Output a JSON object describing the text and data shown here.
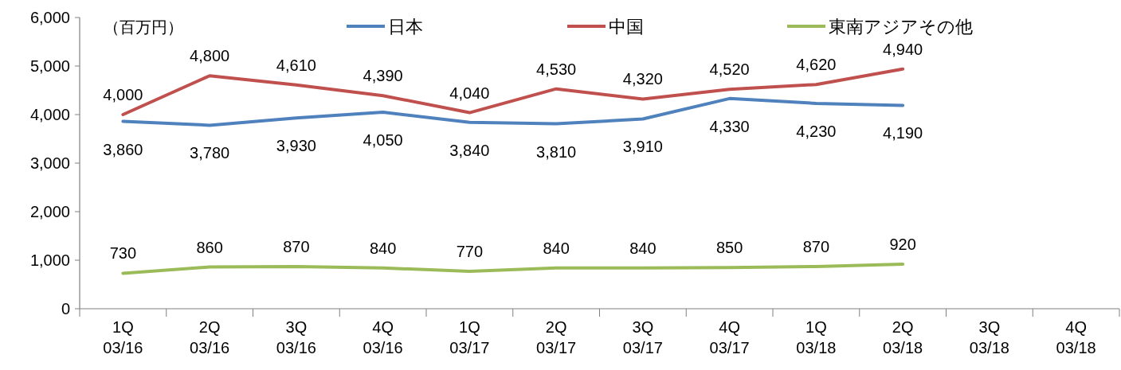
{
  "chart_data": {
    "type": "line",
    "categories": [
      "1Q\n03/16",
      "2Q\n03/16",
      "3Q\n03/16",
      "4Q\n03/16",
      "1Q\n03/17",
      "2Q\n03/17",
      "3Q\n03/17",
      "4Q\n03/17",
      "1Q\n03/18",
      "2Q\n03/18",
      "3Q\n03/18",
      "4Q\n03/18"
    ],
    "series": [
      {
        "name": "日本",
        "color": "#4f81bd",
        "values": [
          3860,
          3780,
          3930,
          4050,
          3840,
          3810,
          3910,
          4330,
          4230,
          4190,
          null,
          null
        ],
        "value_labels": [
          "3,860",
          "3,780",
          "3,930",
          "4,050",
          "3,840",
          "3,810",
          "3,910",
          "4,330",
          "4,230",
          "4,190",
          null,
          null
        ]
      },
      {
        "name": "中国",
        "color": "#c0504d",
        "values": [
          4000,
          4800,
          4610,
          4390,
          4040,
          4530,
          4320,
          4520,
          4620,
          4940,
          null,
          null
        ],
        "value_labels": [
          "4,000",
          "4,800",
          "4,610",
          "4,390",
          "4,040",
          "4,530",
          "4,320",
          "4,520",
          "4,620",
          "4,940",
          null,
          null
        ]
      },
      {
        "name": "東南アジアその他",
        "color": "#9bbb59",
        "values": [
          730,
          860,
          870,
          840,
          770,
          840,
          840,
          850,
          870,
          920,
          null,
          null
        ],
        "value_labels": [
          "730",
          "860",
          "870",
          "840",
          "770",
          "840",
          "840",
          "850",
          "870",
          "920",
          null,
          null
        ]
      }
    ],
    "ylim": [
      0,
      6000
    ],
    "yticks": [
      {
        "value": 0,
        "label": "0"
      },
      {
        "value": 1000,
        "label": "1,000"
      },
      {
        "value": 2000,
        "label": "2,000"
      },
      {
        "value": 3000,
        "label": "3,000"
      },
      {
        "value": 4000,
        "label": "4,000"
      },
      {
        "value": 5000,
        "label": "5,000"
      },
      {
        "value": 6000,
        "label": "6,000"
      }
    ],
    "annotations": [
      "（百万円）"
    ],
    "legend": "top",
    "grid": false,
    "marker": "none",
    "line_style": "solid"
  }
}
